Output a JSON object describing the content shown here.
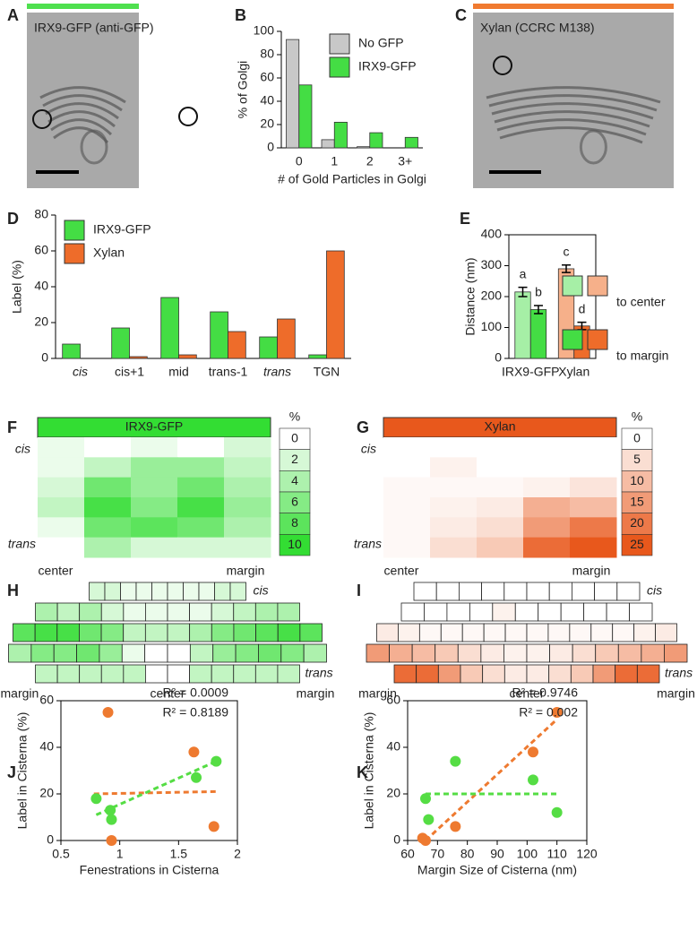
{
  "images": [
    {
      "panel": "A",
      "label": "IRX9-GFP (anti-GFP)",
      "color": "#4fe04f"
    },
    {
      "panel": "C",
      "label": "Xylan (CCRC M138)",
      "color": "#f07a30"
    }
  ],
  "chart_data": [
    {
      "panel": "B",
      "type": "bar",
      "xlabel": "# of Gold Particles in Golgi",
      "ylabel": "% of Golgi",
      "categories": [
        "0",
        "1",
        "2",
        "3+"
      ],
      "series": [
        {
          "name": "No GFP",
          "color": "#c8c8c8",
          "values": [
            93,
            7,
            1,
            0
          ]
        },
        {
          "name": "IRX9-GFP",
          "color": "#44dd44",
          "values": [
            54,
            22,
            13,
            9
          ]
        }
      ],
      "ylim": [
        0,
        100
      ],
      "yticks": [
        0,
        20,
        40,
        60,
        80,
        100
      ],
      "legend": "top-right"
    },
    {
      "panel": "D",
      "type": "bar",
      "ylabel": "Label (%)",
      "categories": [
        "cis",
        "cis+1",
        "mid",
        "trans-1",
        "trans",
        "TGN"
      ],
      "series": [
        {
          "name": "IRX9-GFP",
          "color": "#44dd44",
          "values": [
            8,
            17,
            34,
            26,
            12,
            2
          ]
        },
        {
          "name": "Xylan",
          "color": "#ee6c2a",
          "values": [
            0,
            1,
            2,
            15,
            22,
            60
          ]
        }
      ],
      "ylim": [
        0,
        80
      ],
      "yticks": [
        0,
        20,
        40,
        60,
        80
      ],
      "legend": "top-left"
    },
    {
      "panel": "E",
      "type": "bar",
      "ylabel": "Distance (nm)",
      "categories": [
        "IRX9-GFP",
        "Xylan"
      ],
      "series": [
        {
          "name": "to center",
          "colors": [
            "#a6efa6",
            "#f6b08a"
          ],
          "values": [
            215,
            290
          ],
          "errors": [
            15,
            12
          ],
          "letters": [
            "a",
            "c"
          ]
        },
        {
          "name": "to margin",
          "colors": [
            "#44dd44",
            "#ee6c2a"
          ],
          "values": [
            158,
            105
          ],
          "errors": [
            13,
            12
          ],
          "letters": [
            "b",
            "d"
          ]
        }
      ],
      "ylim": [
        0,
        400
      ],
      "yticks": [
        0,
        100,
        200,
        300,
        400
      ],
      "legend": "right"
    },
    {
      "panel": "F",
      "type": "heatmap",
      "title": "IRX9-GFP",
      "color": "#33dd33",
      "top_label": "cis",
      "bottom_label": "trans",
      "x_labels": [
        "center",
        "margin"
      ],
      "zlim": [
        0,
        10
      ],
      "colorbar_label": "%",
      "colorbar_ticks": [
        0,
        2,
        4,
        6,
        8,
        10
      ],
      "values": [
        [
          1,
          0,
          1,
          0,
          2
        ],
        [
          1,
          3,
          5,
          5,
          3
        ],
        [
          2,
          7,
          5,
          7,
          4
        ],
        [
          3,
          9,
          6,
          9,
          5
        ],
        [
          1,
          7,
          8,
          7,
          4
        ],
        [
          0,
          4,
          2,
          2,
          2
        ]
      ]
    },
    {
      "panel": "G",
      "type": "heatmap",
      "title": "Xylan",
      "color": "#e8581c",
      "top_label": "cis",
      "bottom_label": "trans",
      "x_labels": [
        "center",
        "margin"
      ],
      "zlim": [
        0,
        25
      ],
      "colorbar_label": "%",
      "colorbar_ticks": [
        0,
        5,
        10,
        15,
        20,
        25
      ],
      "values": [
        [
          0,
          0,
          0,
          0,
          0
        ],
        [
          0,
          2,
          0,
          0,
          0
        ],
        [
          1,
          1,
          1,
          2,
          4
        ],
        [
          1,
          2,
          3,
          12,
          10
        ],
        [
          1,
          3,
          5,
          15,
          20
        ],
        [
          1,
          5,
          8,
          22,
          25
        ]
      ]
    },
    {
      "panel": "H",
      "type": "golgi",
      "color": "#33dd33",
      "zlim": [
        0,
        10
      ],
      "top_label": "cis",
      "bottom_label": "trans",
      "x_labels": [
        "margin",
        "center",
        "margin"
      ],
      "rows": [
        [
          2,
          2,
          1,
          1,
          1,
          1,
          1,
          1,
          2,
          2
        ],
        [
          4,
          3,
          4,
          2,
          1,
          1,
          1,
          1,
          2,
          3,
          4,
          4
        ],
        [
          8,
          9,
          9,
          7,
          6,
          3,
          3,
          3,
          4,
          6,
          7,
          8,
          9,
          8
        ],
        [
          4,
          6,
          6,
          7,
          5,
          1,
          0,
          0,
          3,
          5,
          6,
          7,
          6,
          4
        ],
        [
          3,
          3,
          3,
          3,
          3,
          0,
          0,
          3,
          3,
          3,
          3,
          3
        ]
      ]
    },
    {
      "panel": "I",
      "type": "golgi",
      "color": "#e8581c",
      "zlim": [
        0,
        25
      ],
      "top_label": "cis",
      "bottom_label": "trans",
      "x_labels": [
        "margin",
        "center",
        "margin"
      ],
      "rows": [
        [
          0,
          0,
          0,
          0,
          0,
          0,
          0,
          0,
          0,
          0
        ],
        [
          0,
          0,
          0,
          0,
          2,
          0,
          0,
          0,
          0,
          0,
          0
        ],
        [
          3,
          2,
          1,
          1,
          1,
          1,
          1,
          1,
          1,
          1,
          1,
          1,
          2,
          3
        ],
        [
          15,
          12,
          10,
          8,
          5,
          3,
          2,
          2,
          3,
          5,
          8,
          10,
          12,
          15
        ],
        [
          22,
          22,
          15,
          8,
          5,
          3,
          3,
          5,
          8,
          15,
          22,
          22
        ]
      ]
    },
    {
      "panel": "J",
      "type": "scatter",
      "xlabel": "Fenestrations in Cisterna",
      "ylabel": "Label in Cisterna (%)",
      "xlim": [
        0.5,
        2
      ],
      "xticks": [
        0.5,
        1,
        1.5,
        2
      ],
      "ylim": [
        0,
        60
      ],
      "yticks": [
        0,
        20,
        40,
        60
      ],
      "series": [
        {
          "color": "#ee7a30",
          "x": [
            0.9,
            0.93,
            1.63,
            1.8
          ],
          "values": [
            55,
            0,
            38,
            6
          ]
        },
        {
          "color": "#55dd44",
          "x": [
            0.8,
            0.92,
            0.93,
            1.65,
            1.82
          ],
          "values": [
            18,
            13,
            9,
            27,
            34
          ]
        }
      ],
      "trendlines": [
        {
          "color": "#ee7a30",
          "x": [
            0.78,
            1.82
          ],
          "values": [
            20,
            21
          ]
        },
        {
          "color": "#55dd44",
          "x": [
            0.8,
            1.82
          ],
          "values": [
            11,
            34
          ]
        }
      ],
      "annotations": [
        {
          "text": "R² = 0.0009",
          "color": "#ee7a30"
        },
        {
          "text": "R² = 0.8189",
          "color": "#55dd44"
        }
      ]
    },
    {
      "panel": "K",
      "type": "scatter",
      "xlabel": "Margin Size of Cisterna (nm)",
      "ylabel": "Label in Cisterna (%)",
      "xlim": [
        60,
        120
      ],
      "xticks": [
        60,
        70,
        80,
        90,
        100,
        110,
        120
      ],
      "ylim": [
        0,
        60
      ],
      "yticks": [
        0,
        20,
        40,
        60
      ],
      "series": [
        {
          "color": "#ee7a30",
          "x": [
            65,
            66,
            76,
            102,
            110
          ],
          "values": [
            1,
            0,
            6,
            38,
            55
          ]
        },
        {
          "color": "#55dd44",
          "x": [
            66,
            67,
            76,
            102,
            110
          ],
          "values": [
            18,
            9,
            34,
            26,
            12
          ]
        }
      ],
      "trendlines": [
        {
          "color": "#ee7a30",
          "x": [
            66,
            110
          ],
          "values": [
            0,
            52
          ]
        },
        {
          "color": "#55dd44",
          "x": [
            66,
            110
          ],
          "values": [
            20,
            20
          ]
        }
      ],
      "annotations": [
        {
          "text": "R² = 0.9746",
          "color": "#ee7a30"
        },
        {
          "text": "R² = 0.002",
          "color": "#55dd44"
        }
      ]
    }
  ]
}
